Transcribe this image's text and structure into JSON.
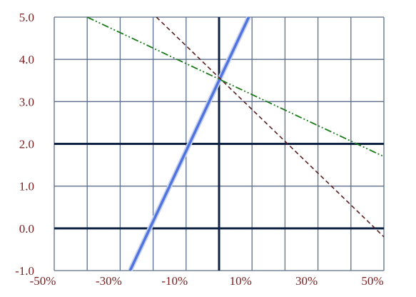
{
  "chart_data": {
    "type": "line",
    "title": "",
    "xlabel": "",
    "ylabel": "",
    "xlim": [
      -0.5,
      0.5
    ],
    "ylim": [
      -1.0,
      5.0
    ],
    "x_ticks": [
      -0.5,
      -0.3,
      -0.1,
      0.1,
      0.3,
      0.5
    ],
    "x_tick_labels": [
      "-50%",
      "-30%",
      "-10%",
      "10%",
      "30%",
      "50%"
    ],
    "y_ticks": [
      -1.0,
      0.0,
      1.0,
      2.0,
      3.0,
      4.0,
      5.0
    ],
    "y_tick_labels": [
      "-1.0",
      "0.0",
      "1.0",
      "2.0",
      "3.0",
      "4.0",
      "5.0"
    ],
    "x_grid_step": 0.1,
    "grid": true,
    "highlight_lines": {
      "x": [
        0.0
      ],
      "y": [
        0.0,
        2.0
      ]
    },
    "series": [
      {
        "color": "#4f74e0",
        "style": "solid",
        "x": [
          -0.27,
          0.09
        ],
        "y": [
          -1.0,
          5.0
        ]
      },
      {
        "color": "#5a1f1f",
        "style": "dashed",
        "x": [
          -0.19,
          0.5
        ],
        "y": [
          5.0,
          -0.2
        ]
      },
      {
        "color": "#1a7a1a",
        "style": "dash-dot-dot",
        "x": [
          -0.4,
          0.5
        ],
        "y": [
          5.0,
          1.7
        ]
      }
    ],
    "colors": {
      "grid": "#5c6f8c",
      "highlight_grid": "#0e2244",
      "tick_label": "#7a2020"
    }
  }
}
